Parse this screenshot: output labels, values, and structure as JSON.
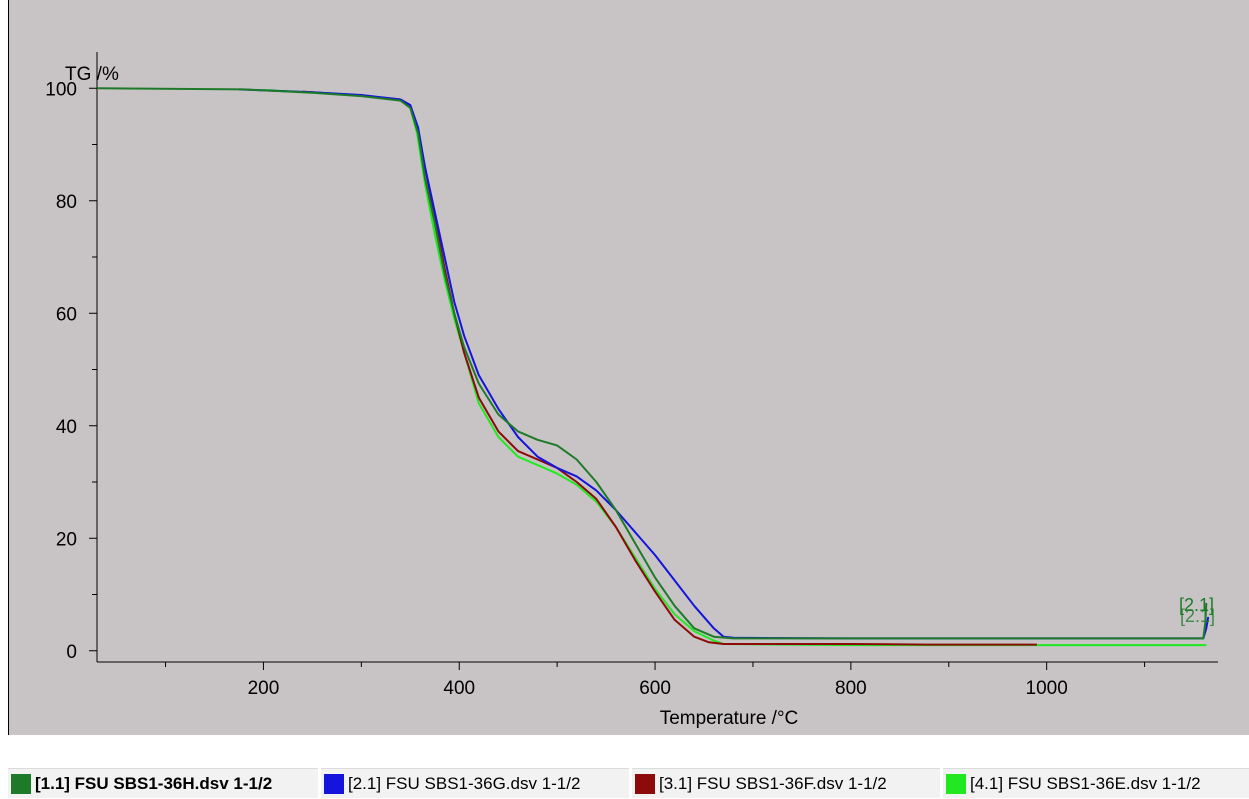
{
  "chart_data": {
    "type": "line",
    "ylabel": "TG /%",
    "xlabel": "Temperature /°C",
    "xlim": [
      30,
      1175
    ],
    "ylim": [
      -2,
      110
    ],
    "x_ticks": [
      200,
      400,
      600,
      800,
      1000
    ],
    "y_ticks": [
      0,
      20,
      40,
      60,
      80,
      100
    ],
    "grid": false,
    "legend_position": "bottom",
    "series": [
      {
        "name": "[1.1] FSU SBS1-36H.dsv 1-1/2",
        "color": "#1e7a28",
        "points": [
          [
            30,
            100
          ],
          [
            180,
            99.8
          ],
          [
            250,
            99.2
          ],
          [
            300,
            98.6
          ],
          [
            340,
            97.8
          ],
          [
            350,
            96.5
          ],
          [
            358,
            92
          ],
          [
            365,
            84
          ],
          [
            375,
            76
          ],
          [
            385,
            67
          ],
          [
            395,
            60
          ],
          [
            405,
            54
          ],
          [
            420,
            47.5
          ],
          [
            440,
            42
          ],
          [
            460,
            39
          ],
          [
            480,
            37.5
          ],
          [
            500,
            36.5
          ],
          [
            520,
            34
          ],
          [
            540,
            30
          ],
          [
            560,
            25
          ],
          [
            580,
            19
          ],
          [
            600,
            13
          ],
          [
            620,
            8
          ],
          [
            640,
            4
          ],
          [
            660,
            2.5
          ],
          [
            680,
            2.2
          ],
          [
            800,
            2.2
          ],
          [
            1000,
            2.2
          ],
          [
            1160,
            2.2
          ],
          [
            1162,
            5
          ],
          [
            1163,
            8.5
          ]
        ]
      },
      {
        "name": "[2.1] FSU SBS1-36G.dsv 1-1/2",
        "color": "#1414dc",
        "points": [
          [
            175,
            99.8
          ],
          [
            250,
            99.3
          ],
          [
            300,
            98.8
          ],
          [
            340,
            98
          ],
          [
            350,
            97
          ],
          [
            358,
            93
          ],
          [
            365,
            86
          ],
          [
            375,
            78
          ],
          [
            385,
            70
          ],
          [
            395,
            62
          ],
          [
            405,
            56
          ],
          [
            420,
            49
          ],
          [
            440,
            43
          ],
          [
            460,
            38
          ],
          [
            480,
            34.5
          ],
          [
            500,
            32.5
          ],
          [
            520,
            31
          ],
          [
            540,
            28.5
          ],
          [
            560,
            25
          ],
          [
            580,
            21
          ],
          [
            600,
            17
          ],
          [
            620,
            12.5
          ],
          [
            640,
            8
          ],
          [
            660,
            4
          ],
          [
            670,
            2.5
          ],
          [
            680,
            2.3
          ],
          [
            800,
            2.2
          ],
          [
            1000,
            2.2
          ],
          [
            1160,
            2.2
          ],
          [
            1163,
            4
          ],
          [
            1165,
            6
          ]
        ]
      },
      {
        "name": "[3.1] FSU SBS1-36F.dsv 1-1/2",
        "color": "#8c0a0a",
        "points": [
          [
            240,
            99.4
          ],
          [
            300,
            98.7
          ],
          [
            340,
            98
          ],
          [
            350,
            97
          ],
          [
            357,
            93
          ],
          [
            365,
            86
          ],
          [
            375,
            77
          ],
          [
            385,
            68
          ],
          [
            395,
            60
          ],
          [
            405,
            53
          ],
          [
            420,
            45
          ],
          [
            440,
            39
          ],
          [
            460,
            35.5
          ],
          [
            480,
            34
          ],
          [
            500,
            32.5
          ],
          [
            520,
            30
          ],
          [
            540,
            27
          ],
          [
            560,
            22
          ],
          [
            580,
            16
          ],
          [
            600,
            10.5
          ],
          [
            620,
            5.5
          ],
          [
            640,
            2.5
          ],
          [
            655,
            1.5
          ],
          [
            670,
            1.2
          ],
          [
            800,
            1.2
          ],
          [
            880,
            1.1
          ],
          [
            990,
            1.1
          ]
        ]
      },
      {
        "name": "[4.1] FSU SBS1-36E.dsv 1-1/2",
        "color": "#22e822",
        "points": [
          [
            200,
            99.7
          ],
          [
            250,
            99.2
          ],
          [
            300,
            98.7
          ],
          [
            340,
            98
          ],
          [
            350,
            96.5
          ],
          [
            357,
            92
          ],
          [
            365,
            83
          ],
          [
            375,
            74
          ],
          [
            385,
            66
          ],
          [
            395,
            59
          ],
          [
            405,
            53
          ],
          [
            420,
            44
          ],
          [
            440,
            38
          ],
          [
            460,
            34.5
          ],
          [
            480,
            33
          ],
          [
            500,
            31.5
          ],
          [
            520,
            29.5
          ],
          [
            540,
            26.5
          ],
          [
            560,
            22
          ],
          [
            580,
            16.5
          ],
          [
            600,
            11
          ],
          [
            620,
            6.5
          ],
          [
            640,
            3.5
          ],
          [
            660,
            1.8
          ],
          [
            670,
            1.2
          ],
          [
            800,
            1
          ],
          [
            1000,
            1
          ],
          [
            1163,
            1
          ]
        ]
      }
    ],
    "end_label": "[2.1]"
  }
}
